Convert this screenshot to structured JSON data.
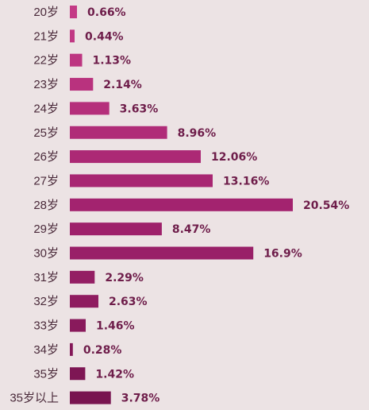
{
  "chart_data": {
    "type": "bar",
    "orientation": "horizontal",
    "title": "",
    "xlabel": "",
    "ylabel": "",
    "grid": false,
    "categories": [
      "20岁",
      "21岁",
      "22岁",
      "23岁",
      "24岁",
      "25岁",
      "26岁",
      "27岁",
      "28岁",
      "29岁",
      "30岁",
      "31岁",
      "32岁",
      "33岁",
      "34岁",
      "35岁",
      "35岁以上"
    ],
    "values": [
      0.66,
      0.44,
      1.13,
      2.14,
      3.63,
      8.96,
      12.06,
      13.16,
      20.54,
      8.47,
      16.9,
      2.29,
      2.63,
      1.46,
      0.28,
      1.42,
      3.78
    ],
    "value_labels": [
      "0.66%",
      "0.44%",
      "1.13%",
      "2.14%",
      "3.63%",
      "8.96%",
      "12.06%",
      "13.16%",
      "20.54%",
      "8.47%",
      "16.9%",
      "2.29%",
      "2.63%",
      "1.46%",
      "0.28%",
      "1.42%",
      "3.78%"
    ],
    "bar_colors": [
      "#c43a86",
      "#c13884",
      "#bd3581",
      "#b9327e",
      "#b52f7b",
      "#b02c78",
      "#ac2975",
      "#a82672",
      "#a3236f",
      "#9e216b",
      "#992068",
      "#941e64",
      "#8f1c60",
      "#891a5c",
      "#841858",
      "#7e1654",
      "#781450"
    ],
    "xlim": [
      0,
      20.54
    ]
  }
}
